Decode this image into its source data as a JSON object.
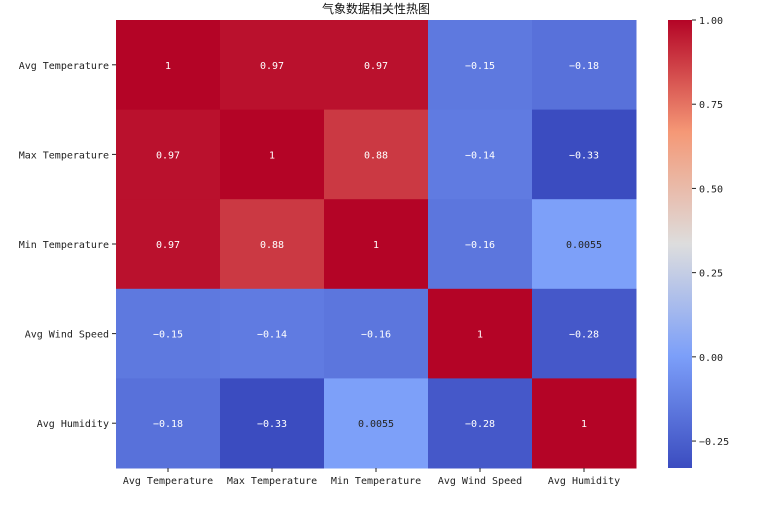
{
  "chart_data": {
    "type": "heatmap",
    "title": "气象数据相关性热图",
    "xlabel": "",
    "ylabel": "",
    "x_categories": [
      "Avg Temperature",
      "Max Temperature",
      "Min Temperature",
      "Avg Wind Speed",
      "Avg Humidity"
    ],
    "y_categories": [
      "Avg Temperature",
      "Max Temperature",
      "Min Temperature",
      "Avg Wind Speed",
      "Avg Humidity"
    ],
    "values": [
      [
        1,
        0.97,
        0.97,
        -0.15,
        -0.18
      ],
      [
        0.97,
        1,
        0.88,
        -0.14,
        -0.33
      ],
      [
        0.97,
        0.88,
        1,
        -0.16,
        0.0055
      ],
      [
        -0.15,
        -0.14,
        -0.16,
        1,
        -0.28
      ],
      [
        -0.18,
        -0.33,
        0.0055,
        -0.28,
        1
      ]
    ],
    "cell_labels": [
      [
        "1",
        "0.97",
        "0.97",
        "−0.15",
        "−0.18"
      ],
      [
        "0.97",
        "1",
        "0.88",
        "−0.14",
        "−0.33"
      ],
      [
        "0.97",
        "0.88",
        "1",
        "−0.16",
        "0.0055"
      ],
      [
        "−0.15",
        "−0.14",
        "−0.16",
        "1",
        "−0.28"
      ],
      [
        "−0.18",
        "−0.33",
        "0.0055",
        "−0.28",
        "1"
      ]
    ],
    "colormap": "coolwarm",
    "colorbar": {
      "range": [
        -0.33,
        1.0
      ],
      "ticks": [
        -0.25,
        0.0,
        0.25,
        0.5,
        0.75,
        1.0
      ],
      "tick_labels": [
        "−0.25",
        "0.00",
        "0.25",
        "0.50",
        "0.75",
        "1.00"
      ]
    }
  }
}
